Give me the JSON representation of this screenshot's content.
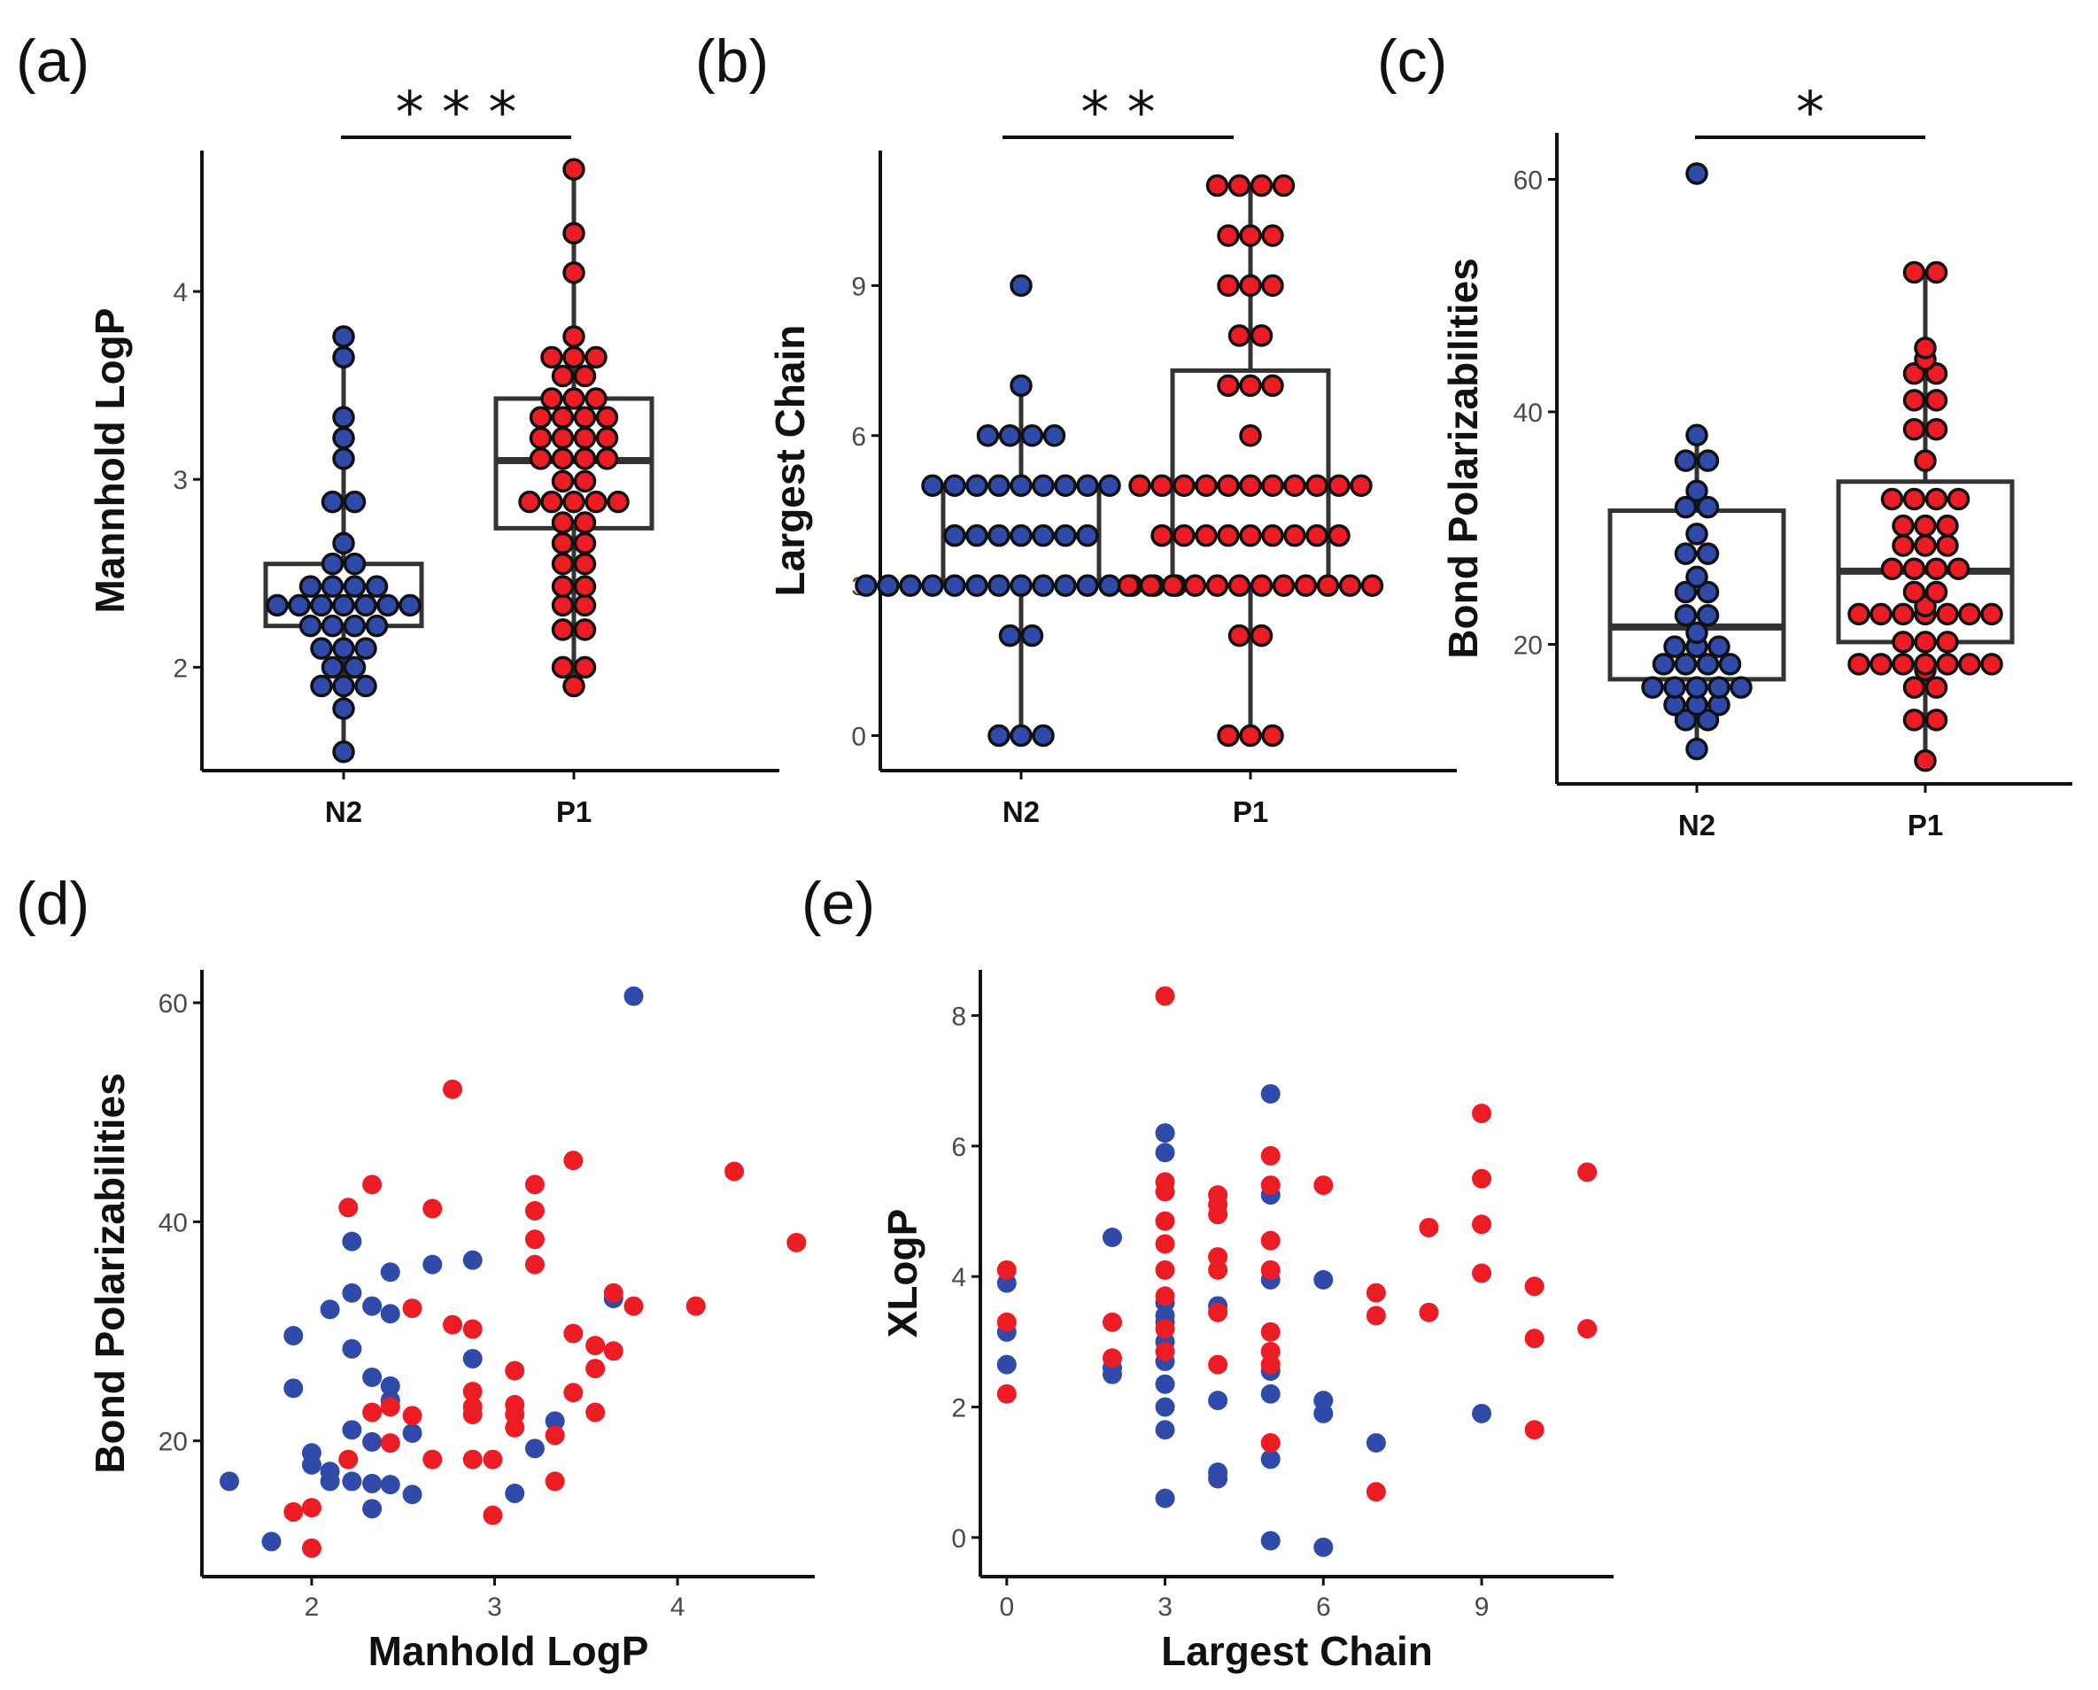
{
  "colors": {
    "N2": "#2f4aa8",
    "P1": "#ec1c24",
    "outline": "#111111"
  },
  "chart_data": [
    {
      "id": "a",
      "panel_label": "(a)",
      "type": "box",
      "ylabel": "Mannhold LogP",
      "ylim": [
        1.45,
        4.75
      ],
      "yticks": [
        2,
        3,
        4
      ],
      "categories": [
        "N2",
        "P1"
      ],
      "significance": "* * *",
      "boxes": [
        {
          "group": "N2",
          "q1": 2.22,
          "median": 2.33,
          "q3": 2.55,
          "whisker_low": 1.55,
          "whisker_high": 3.76
        },
        {
          "group": "P1",
          "q1": 2.74,
          "median": 3.1,
          "q3": 3.43,
          "whisker_low": 1.9,
          "whisker_high": 4.65
        }
      ],
      "points": {
        "N2": [
          1.55,
          1.78,
          1.9,
          1.9,
          1.9,
          2.0,
          2.0,
          2.1,
          2.1,
          2.1,
          2.22,
          2.22,
          2.22,
          2.22,
          2.33,
          2.33,
          2.33,
          2.33,
          2.33,
          2.33,
          2.33,
          2.43,
          2.43,
          2.43,
          2.43,
          2.55,
          2.55,
          2.66,
          2.88,
          2.88,
          3.11,
          3.22,
          3.33,
          3.65,
          3.76
        ],
        "P1": [
          1.9,
          2.0,
          2.0,
          2.2,
          2.2,
          2.33,
          2.33,
          2.43,
          2.43,
          2.55,
          2.55,
          2.66,
          2.66,
          2.77,
          2.77,
          2.88,
          2.88,
          2.88,
          2.88,
          2.88,
          2.99,
          2.99,
          3.11,
          3.11,
          3.11,
          3.11,
          3.22,
          3.22,
          3.22,
          3.22,
          3.33,
          3.33,
          3.33,
          3.33,
          3.43,
          3.43,
          3.43,
          3.55,
          3.55,
          3.65,
          3.65,
          3.65,
          3.76,
          4.1,
          4.31,
          4.65
        ]
      }
    },
    {
      "id": "b",
      "panel_label": "(b)",
      "type": "box",
      "ylabel": "Largest Chain",
      "ylim": [
        -0.7,
        11.7
      ],
      "yticks": [
        0,
        3,
        6,
        9
      ],
      "categories": [
        "N2",
        "P1"
      ],
      "significance": "* *",
      "boxes": [
        {
          "group": "N2",
          "q1": 3,
          "median": 4,
          "q3": 5,
          "whisker_low": 0,
          "whisker_high": 7
        },
        {
          "group": "P1",
          "q1": 3,
          "median": 5,
          "q3": 7.3,
          "whisker_low": 0,
          "whisker_high": 11
        }
      ],
      "points": {
        "N2": [
          0,
          0,
          0,
          2,
          2,
          3,
          3,
          3,
          3,
          3,
          3,
          3,
          3,
          3,
          3,
          3,
          3,
          3,
          3,
          3,
          4,
          4,
          4,
          4,
          4,
          4,
          4,
          5,
          5,
          5,
          5,
          5,
          5,
          5,
          5,
          5,
          6,
          6,
          6,
          6,
          7,
          9
        ],
        "P1": [
          0,
          0,
          0,
          2,
          2,
          3,
          3,
          3,
          3,
          3,
          3,
          3,
          3,
          3,
          3,
          3,
          3,
          4,
          4,
          4,
          4,
          4,
          4,
          4,
          4,
          4,
          5,
          5,
          5,
          5,
          5,
          5,
          5,
          5,
          5,
          5,
          5,
          6,
          7,
          7,
          7,
          8,
          8,
          9,
          9,
          9,
          10,
          10,
          10,
          11,
          11,
          11,
          11
        ]
      }
    },
    {
      "id": "c",
      "panel_label": "(c)",
      "type": "box",
      "ylabel": "Bond Polarizabilities",
      "ylim": [
        8,
        64
      ],
      "yticks": [
        20,
        40,
        60
      ],
      "categories": [
        "N2",
        "P1"
      ],
      "significance": "*",
      "boxes": [
        {
          "group": "N2",
          "q1": 17,
          "median": 21.5,
          "q3": 31.5,
          "whisker_low": 11,
          "whisker_high": 38
        },
        {
          "group": "P1",
          "q1": 20.2,
          "median": 26.3,
          "q3": 34,
          "whisker_low": 10,
          "whisker_high": 52
        }
      ],
      "points": {
        "N2": [
          11,
          13.5,
          13.5,
          14.8,
          14.8,
          14.8,
          16.3,
          16.3,
          16.3,
          16.3,
          16.3,
          18.3,
          18.3,
          18.3,
          18.3,
          19.8,
          19.8,
          19.8,
          21,
          22.5,
          22.5,
          24.5,
          24.5,
          25.8,
          27.8,
          27.8,
          29.5,
          31.8,
          31.8,
          33.2,
          35.8,
          35.8,
          38,
          60.5
        ],
        "P1": [
          10,
          13.5,
          13.5,
          16.3,
          16.3,
          17.8,
          18.3,
          18.3,
          18.3,
          18.3,
          18.3,
          18.3,
          18.3,
          20.2,
          20.2,
          20.2,
          22.6,
          22.6,
          22.6,
          22.6,
          22.6,
          22.6,
          22.6,
          23.3,
          24.5,
          24.5,
          26.5,
          26.5,
          26.5,
          26.5,
          28.5,
          28.5,
          28.5,
          30.2,
          30.2,
          30.2,
          32.5,
          32.5,
          32.5,
          32.5,
          35.8,
          38.5,
          38.5,
          41,
          41,
          43.3,
          43.3,
          44.5,
          45.5,
          52,
          52
        ]
      }
    },
    {
      "id": "d",
      "panel_label": "(d)",
      "type": "scatter",
      "xlabel": "Manhold LogP",
      "ylabel": "Bond Polarizabilities",
      "xlim": [
        1.4,
        4.75
      ],
      "ylim": [
        7.6,
        63
      ],
      "xticks": [
        2,
        3,
        4
      ],
      "yticks": [
        20,
        40,
        60
      ],
      "series": [
        {
          "name": "N2",
          "points": [
            [
              1.55,
              16.3
            ],
            [
              1.78,
              10.8
            ],
            [
              1.9,
              29.6
            ],
            [
              1.9,
              24.8
            ],
            [
              2.0,
              18.9
            ],
            [
              2.0,
              17.8
            ],
            [
              2.1,
              17.2
            ],
            [
              2.1,
              16.3
            ],
            [
              2.1,
              32.0
            ],
            [
              2.22,
              38.2
            ],
            [
              2.22,
              33.5
            ],
            [
              2.22,
              28.4
            ],
            [
              2.22,
              21.0
            ],
            [
              2.22,
              16.3
            ],
            [
              2.33,
              32.3
            ],
            [
              2.33,
              25.8
            ],
            [
              2.33,
              19.9
            ],
            [
              2.33,
              16.1
            ],
            [
              2.33,
              13.8
            ],
            [
              2.43,
              35.4
            ],
            [
              2.43,
              31.6
            ],
            [
              2.43,
              25.0
            ],
            [
              2.43,
              23.7
            ],
            [
              2.43,
              16.0
            ],
            [
              2.55,
              20.7
            ],
            [
              2.55,
              15.1
            ],
            [
              2.66,
              36.1
            ],
            [
              2.88,
              36.5
            ],
            [
              2.88,
              27.5
            ],
            [
              3.11,
              15.2
            ],
            [
              3.22,
              19.3
            ],
            [
              3.33,
              21.8
            ],
            [
              3.65,
              33.0
            ],
            [
              3.76,
              60.6
            ]
          ]
        },
        {
          "name": "P1",
          "points": [
            [
              1.9,
              13.5
            ],
            [
              2.0,
              13.9
            ],
            [
              2.0,
              10.2
            ],
            [
              2.2,
              41.3
            ],
            [
              2.2,
              18.3
            ],
            [
              2.33,
              43.4
            ],
            [
              2.33,
              22.6
            ],
            [
              2.43,
              19.8
            ],
            [
              2.43,
              23.1
            ],
            [
              2.55,
              32.1
            ],
            [
              2.55,
              22.3
            ],
            [
              2.66,
              41.2
            ],
            [
              2.66,
              18.3
            ],
            [
              2.77,
              52.1
            ],
            [
              2.77,
              30.6
            ],
            [
              2.88,
              30.2
            ],
            [
              2.88,
              24.5
            ],
            [
              2.88,
              23.1
            ],
            [
              2.88,
              22.4
            ],
            [
              2.88,
              18.3
            ],
            [
              2.99,
              18.3
            ],
            [
              2.99,
              13.2
            ],
            [
              3.11,
              26.4
            ],
            [
              3.11,
              23.3
            ],
            [
              3.11,
              22.4
            ],
            [
              3.11,
              21.2
            ],
            [
              3.22,
              43.4
            ],
            [
              3.22,
              41.0
            ],
            [
              3.22,
              38.4
            ],
            [
              3.22,
              36.1
            ],
            [
              3.33,
              20.5
            ],
            [
              3.33,
              16.3
            ],
            [
              3.43,
              45.6
            ],
            [
              3.43,
              29.8
            ],
            [
              3.43,
              24.4
            ],
            [
              3.55,
              28.7
            ],
            [
              3.55,
              26.6
            ],
            [
              3.55,
              22.6
            ],
            [
              3.65,
              28.2
            ],
            [
              3.65,
              33.5
            ],
            [
              3.76,
              32.3
            ],
            [
              4.1,
              32.3
            ],
            [
              4.31,
              44.6
            ],
            [
              4.65,
              38.1
            ]
          ]
        }
      ]
    },
    {
      "id": "e",
      "panel_label": "(e)",
      "type": "scatter",
      "xlabel": "Largest Chain",
      "ylabel": "XLogP",
      "xlim": [
        -0.5,
        11.5
      ],
      "ylim": [
        -0.6,
        8.7
      ],
      "xticks": [
        0,
        3,
        6,
        9
      ],
      "yticks": [
        0,
        2,
        4,
        6,
        8
      ],
      "series": [
        {
          "name": "N2",
          "points": [
            [
              0,
              3.9
            ],
            [
              0,
              3.15
            ],
            [
              0,
              2.65
            ],
            [
              2,
              4.6
            ],
            [
              2,
              2.6
            ],
            [
              2,
              2.5
            ],
            [
              3,
              6.2
            ],
            [
              3,
              5.9
            ],
            [
              3,
              3.6
            ],
            [
              3,
              3.4
            ],
            [
              3,
              3.3
            ],
            [
              3,
              3.0
            ],
            [
              3,
              2.7
            ],
            [
              3,
              2.35
            ],
            [
              3,
              2.0
            ],
            [
              3,
              1.65
            ],
            [
              3,
              0.6
            ],
            [
              4,
              3.55
            ],
            [
              4,
              2.1
            ],
            [
              4,
              1.0
            ],
            [
              4,
              0.9
            ],
            [
              5,
              6.8
            ],
            [
              5,
              5.25
            ],
            [
              5,
              3.95
            ],
            [
              5,
              2.55
            ],
            [
              5,
              2.2
            ],
            [
              5,
              1.2
            ],
            [
              5,
              -0.05
            ],
            [
              6,
              3.95
            ],
            [
              6,
              2.1
            ],
            [
              6,
              1.9
            ],
            [
              6,
              -0.15
            ],
            [
              7,
              1.45
            ],
            [
              9,
              1.9
            ]
          ]
        },
        {
          "name": "P1",
          "points": [
            [
              0,
              4.1
            ],
            [
              0,
              3.3
            ],
            [
              0,
              2.2
            ],
            [
              2,
              3.3
            ],
            [
              2,
              2.75
            ],
            [
              3,
              8.3
            ],
            [
              3,
              5.45
            ],
            [
              3,
              5.3
            ],
            [
              3,
              4.85
            ],
            [
              3,
              4.5
            ],
            [
              3,
              4.1
            ],
            [
              3,
              3.7
            ],
            [
              3,
              3.2
            ],
            [
              3,
              2.85
            ],
            [
              4,
              5.25
            ],
            [
              4,
              5.1
            ],
            [
              4,
              4.95
            ],
            [
              4,
              4.3
            ],
            [
              4,
              4.1
            ],
            [
              4,
              3.45
            ],
            [
              4,
              2.65
            ],
            [
              5,
              5.85
            ],
            [
              5,
              5.4
            ],
            [
              5,
              4.55
            ],
            [
              5,
              4.1
            ],
            [
              5,
              3.15
            ],
            [
              5,
              2.85
            ],
            [
              5,
              2.65
            ],
            [
              5,
              1.45
            ],
            [
              6,
              5.4
            ],
            [
              7,
              3.75
            ],
            [
              7,
              3.4
            ],
            [
              7,
              0.7
            ],
            [
              8,
              4.75
            ],
            [
              8,
              3.45
            ],
            [
              9,
              6.5
            ],
            [
              9,
              5.5
            ],
            [
              9,
              4.8
            ],
            [
              9,
              4.05
            ],
            [
              10,
              3.85
            ],
            [
              10,
              3.05
            ],
            [
              10,
              1.65
            ],
            [
              11,
              5.6
            ],
            [
              11,
              3.2
            ]
          ]
        }
      ]
    }
  ]
}
